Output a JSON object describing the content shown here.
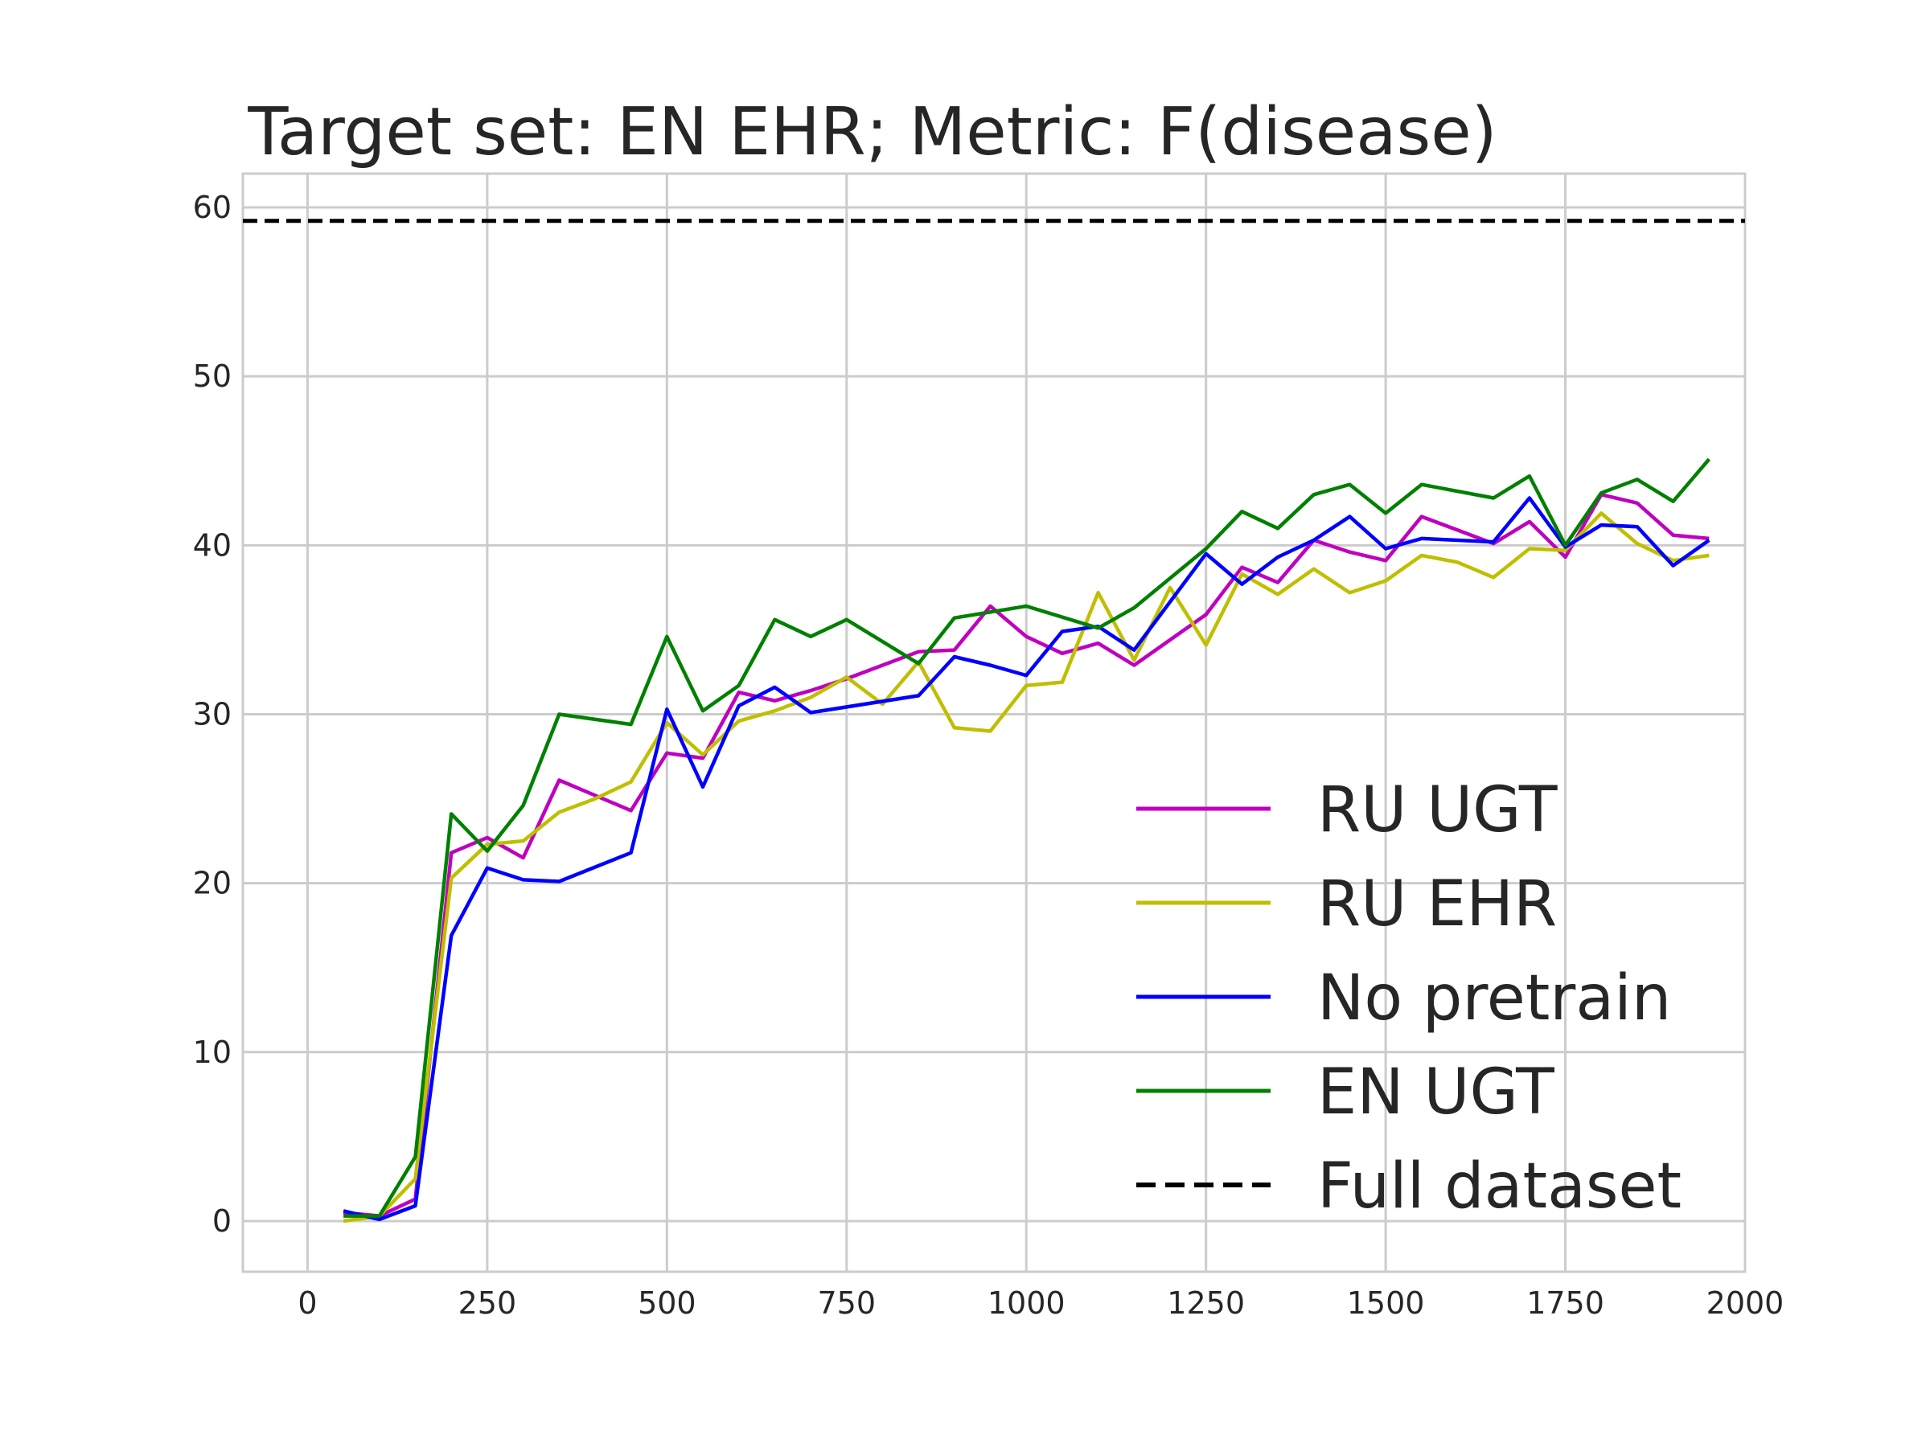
{
  "chart_data": {
    "type": "line",
    "title": "Target set: EN EHR; Metric: F(disease)",
    "xlabel": "",
    "ylabel": "",
    "xlim": [
      -90,
      2000
    ],
    "ylim": [
      -3,
      62
    ],
    "x_ticks": [
      0,
      250,
      500,
      750,
      1000,
      1250,
      1500,
      1750,
      2000
    ],
    "y_ticks": [
      0,
      10,
      20,
      30,
      40,
      50,
      60
    ],
    "grid": true,
    "legend_position": "lower-right",
    "series": [
      {
        "name": "RU UGT",
        "color": "#bf00bf",
        "dashed": false,
        "x": [
          50,
          100,
          150,
          200,
          250,
          300,
          350,
          400,
          450,
          500,
          550,
          600,
          650,
          700,
          750,
          800,
          850,
          900,
          950,
          1000,
          1050,
          1100,
          1150,
          1200,
          1250,
          1300,
          1350,
          1400,
          1450,
          1500,
          1550,
          1600,
          1650,
          1700,
          1750,
          1800,
          1850,
          1900,
          1950
        ],
        "y": [
          0.5,
          0.3,
          1.3,
          21.8,
          22.7,
          21.5,
          26.1,
          25.2,
          24.3,
          27.7,
          27.4,
          31.3,
          30.8,
          31.4,
          32.1,
          32.9,
          33.7,
          33.8,
          36.4,
          34.6,
          33.6,
          34.2,
          32.9,
          34.4,
          35.9,
          38.7,
          37.8,
          40.3,
          39.6,
          39.1,
          41.7,
          40.9,
          40.1,
          41.4,
          39.3,
          43.0,
          42.5,
          40.6,
          40.4
        ]
      },
      {
        "name": "RU EHR",
        "color": "#bfbf00",
        "dashed": false,
        "x": [
          50,
          100,
          150,
          200,
          250,
          300,
          350,
          400,
          450,
          500,
          550,
          600,
          650,
          700,
          750,
          800,
          850,
          900,
          950,
          1000,
          1050,
          1100,
          1150,
          1200,
          1250,
          1300,
          1350,
          1400,
          1450,
          1500,
          1550,
          1600,
          1650,
          1700,
          1750,
          1800,
          1850,
          1900,
          1950
        ],
        "y": [
          0.0,
          0.3,
          2.5,
          20.3,
          22.3,
          22.5,
          24.2,
          25.0,
          26.0,
          29.5,
          27.6,
          29.6,
          30.2,
          31.0,
          32.2,
          30.6,
          33.1,
          29.2,
          29.0,
          31.7,
          31.9,
          37.2,
          33.2,
          37.5,
          34.1,
          38.3,
          37.1,
          38.6,
          37.2,
          37.9,
          39.4,
          39.0,
          38.1,
          39.8,
          39.7,
          41.9,
          40.1,
          39.1,
          39.4
        ]
      },
      {
        "name": "No pretrain",
        "color": "#0000ff",
        "dashed": false,
        "x": [
          50,
          100,
          150,
          200,
          250,
          300,
          350,
          450,
          500,
          550,
          600,
          650,
          700,
          850,
          900,
          950,
          1000,
          1050,
          1100,
          1150,
          1250,
          1300,
          1350,
          1400,
          1450,
          1500,
          1550,
          1650,
          1700,
          1750,
          1800,
          1850,
          1900,
          1950
        ],
        "y": [
          0.6,
          0.1,
          0.9,
          16.9,
          20.9,
          20.2,
          20.1,
          21.8,
          30.3,
          25.7,
          30.5,
          31.6,
          30.1,
          31.1,
          33.4,
          32.9,
          32.3,
          34.9,
          35.2,
          33.8,
          39.5,
          37.7,
          39.3,
          40.3,
          41.7,
          39.8,
          40.4,
          40.2,
          42.8,
          39.9,
          41.2,
          41.1,
          38.8,
          40.3
        ]
      },
      {
        "name": "EN UGT",
        "color": "#008000",
        "dashed": false,
        "x": [
          50,
          100,
          150,
          200,
          250,
          300,
          350,
          450,
          500,
          550,
          600,
          650,
          700,
          750,
          850,
          900,
          1000,
          1100,
          1150,
          1250,
          1300,
          1350,
          1400,
          1450,
          1500,
          1550,
          1650,
          1700,
          1750,
          1800,
          1850,
          1900,
          1950
        ],
        "y": [
          0.3,
          0.3,
          3.8,
          24.1,
          21.9,
          24.6,
          30.0,
          29.4,
          34.6,
          30.2,
          31.7,
          35.6,
          34.6,
          35.6,
          33.0,
          35.7,
          36.4,
          35.1,
          36.3,
          39.8,
          42.0,
          41.0,
          43.0,
          43.6,
          41.9,
          43.6,
          42.8,
          44.1,
          40.0,
          43.1,
          43.9,
          42.6,
          45.1
        ]
      },
      {
        "name": "Full dataset",
        "color": "#000000",
        "dashed": true,
        "x": [
          -90,
          2000
        ],
        "y": [
          59.2,
          59.2
        ]
      }
    ]
  }
}
